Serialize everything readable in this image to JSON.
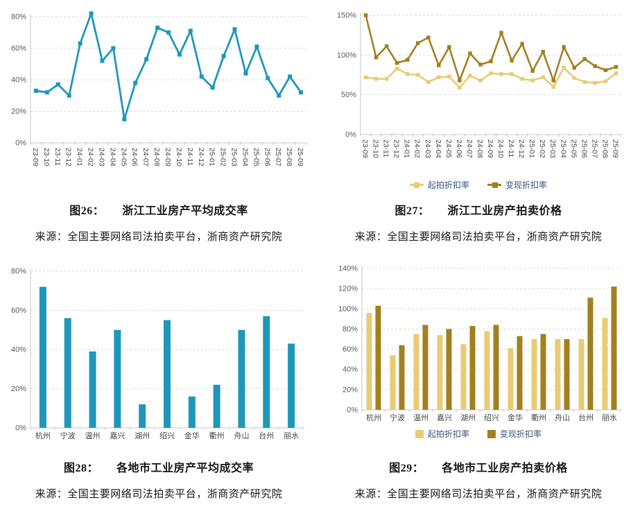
{
  "colors": {
    "teal": "#1e97ba",
    "gold_light": "#e9cb74",
    "gold_dark": "#a28020",
    "grid": "#d9d9d9",
    "axis": "#c6c6c6",
    "tick_text": "#595959",
    "legend_text": "#38547d"
  },
  "figures": {
    "fig26": {
      "label": "图26：",
      "title": "浙江工业房产平均成交率",
      "source": "来源：全国主要网络司法拍卖平台，浙商资产研究院"
    },
    "fig27": {
      "label": "图27：",
      "title": "浙江工业房产拍卖价格",
      "source": "来源：全国主要网络司法拍卖平台，浙商资产研究院"
    },
    "fig28": {
      "label": "图28：",
      "title": "各地市工业房产平均成交率",
      "source": "来源：全国主要网络司法拍卖平台，浙商资产研究院"
    },
    "fig29": {
      "label": "图29：",
      "title": "各地市工业房产拍卖价格",
      "source": "来源：全国主要网络司法拍卖平台，浙商资产研究院"
    }
  },
  "chart_data": [
    {
      "id": "fig26",
      "type": "line",
      "title": "浙江工业房产平均成交率",
      "x": [
        "23-09",
        "23-10",
        "23-11",
        "23-12",
        "24-01",
        "24-02",
        "24-03",
        "24-04",
        "24-05",
        "24-06",
        "24-07",
        "24-08",
        "24-09",
        "24-10",
        "24-11",
        "24-12",
        "25-01",
        "25-02",
        "25-03",
        "25-04",
        "25-05",
        "25-06",
        "25-07",
        "25-08",
        "25-09"
      ],
      "series": [
        {
          "name": "",
          "color": "#1e97ba",
          "values": [
            33,
            32,
            37,
            30,
            63,
            82,
            52,
            60,
            15,
            38,
            53,
            73,
            70,
            56,
            71,
            42,
            35,
            55,
            72,
            44,
            61,
            41,
            30,
            42,
            32
          ]
        }
      ],
      "ylim": [
        0,
        80
      ],
      "ystep": 20,
      "y_format": "percent",
      "grid": true,
      "legend": "none"
    },
    {
      "id": "fig27",
      "type": "line",
      "title": "浙江工业房产拍卖价格",
      "x": [
        "23-09",
        "23-10",
        "23-11",
        "23-12",
        "24-01",
        "24-02",
        "24-03",
        "24-04",
        "24-05",
        "24-06",
        "24-07",
        "24-08",
        "24-09",
        "24-10",
        "24-11",
        "24-12",
        "25-01",
        "25-02",
        "25-03",
        "25-04",
        "25-05",
        "25-06",
        "25-07",
        "25-08",
        "25-09"
      ],
      "series": [
        {
          "name": "起拍折扣率",
          "color": "#e9cb74",
          "values": [
            72,
            70,
            70,
            83,
            76,
            75,
            66,
            72,
            73,
            59,
            74,
            68,
            77,
            76,
            76,
            70,
            68,
            72,
            60,
            84,
            71,
            66,
            65,
            67,
            77
          ]
        },
        {
          "name": "变现折扣率",
          "color": "#a28020",
          "values": [
            150,
            97,
            111,
            90,
            94,
            115,
            122,
            87,
            110,
            68,
            102,
            88,
            92,
            128,
            93,
            114,
            80,
            104,
            68,
            110,
            84,
            95,
            86,
            81,
            85
          ]
        }
      ],
      "ylim": [
        0,
        150
      ],
      "ystep": 50,
      "y_format": "percent",
      "grid": true,
      "legend": "line-marker"
    },
    {
      "id": "fig28",
      "type": "bar",
      "title": "各地市工业房产平均成交率",
      "categories": [
        "杭州",
        "宁波",
        "温州",
        "嘉兴",
        "湖州",
        "绍兴",
        "金华",
        "衢州",
        "舟山",
        "台州",
        "丽水"
      ],
      "series": [
        {
          "name": "",
          "color": "#1e97ba",
          "values": [
            72,
            56,
            39,
            50,
            12,
            55,
            16,
            22,
            50,
            57,
            43
          ]
        }
      ],
      "ylim": [
        0,
        80
      ],
      "ystep": 20,
      "y_format": "percent",
      "grid": true,
      "legend": "none"
    },
    {
      "id": "fig29",
      "type": "bar",
      "title": "各地市工业房产拍卖价格",
      "categories": [
        "杭州",
        "宁波",
        "温州",
        "嘉兴",
        "湖州",
        "绍兴",
        "金华",
        "衢州",
        "舟山",
        "台州",
        "丽水"
      ],
      "series": [
        {
          "name": "起拍折扣率",
          "color": "#e9cb74",
          "values": [
            96,
            54,
            75,
            74,
            65,
            78,
            61,
            70,
            70,
            70,
            91
          ]
        },
        {
          "name": "变现折扣率",
          "color": "#a28020",
          "values": [
            103,
            64,
            84,
            80,
            83,
            84,
            73,
            75,
            70,
            111,
            122
          ]
        }
      ],
      "ylim": [
        0,
        140
      ],
      "ystep": 20,
      "y_format": "percent",
      "grid": true,
      "legend": "square"
    }
  ]
}
